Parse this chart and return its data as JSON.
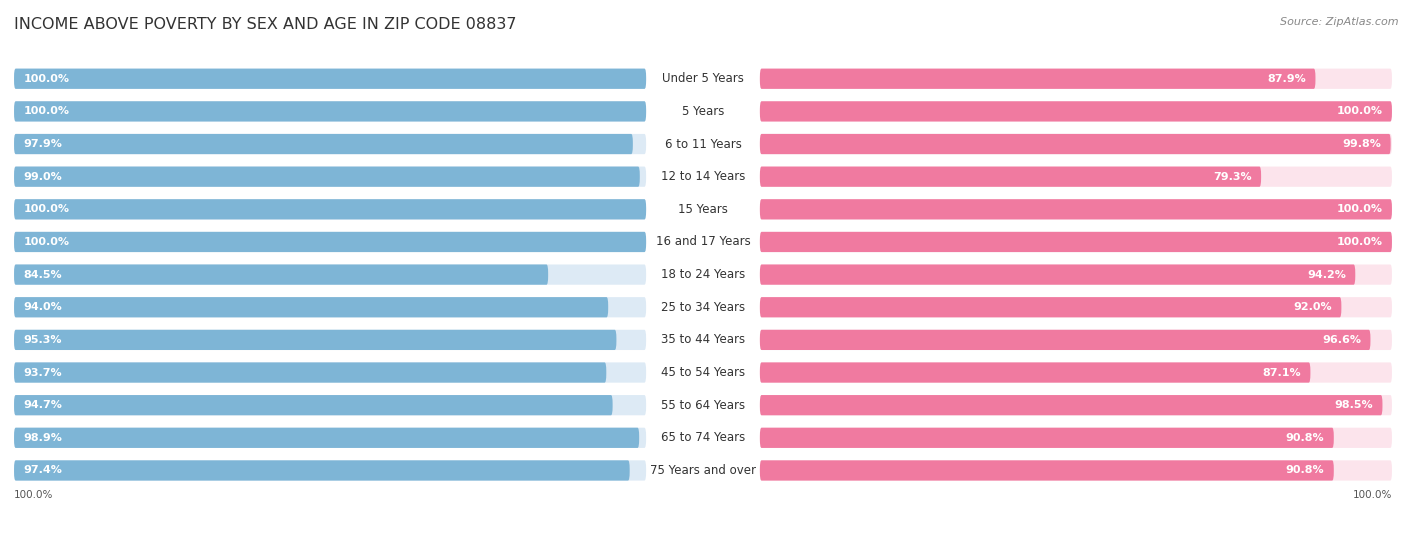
{
  "title": "INCOME ABOVE POVERTY BY SEX AND AGE IN ZIP CODE 08837",
  "source": "Source: ZipAtlas.com",
  "categories": [
    "Under 5 Years",
    "5 Years",
    "6 to 11 Years",
    "12 to 14 Years",
    "15 Years",
    "16 and 17 Years",
    "18 to 24 Years",
    "25 to 34 Years",
    "35 to 44 Years",
    "45 to 54 Years",
    "55 to 64 Years",
    "65 to 74 Years",
    "75 Years and over"
  ],
  "male_values": [
    100.0,
    100.0,
    97.9,
    99.0,
    100.0,
    100.0,
    84.5,
    94.0,
    95.3,
    93.7,
    94.7,
    98.9,
    97.4
  ],
  "female_values": [
    87.9,
    100.0,
    99.8,
    79.3,
    100.0,
    100.0,
    94.2,
    92.0,
    96.6,
    87.1,
    98.5,
    90.8,
    90.8
  ],
  "male_color": "#7eb5d6",
  "female_color": "#f07aa0",
  "male_bg_color": "#ddeaf5",
  "female_bg_color": "#fce4ec",
  "row_bg_color": "#f0f0f4",
  "background_color": "#ffffff",
  "title_fontsize": 11.5,
  "label_fontsize": 8.5,
  "value_fontsize": 8.0,
  "legend_fontsize": 9,
  "source_fontsize": 8,
  "bar_height": 0.62,
  "footer_male": "100.0%",
  "footer_female": "100.0%"
}
